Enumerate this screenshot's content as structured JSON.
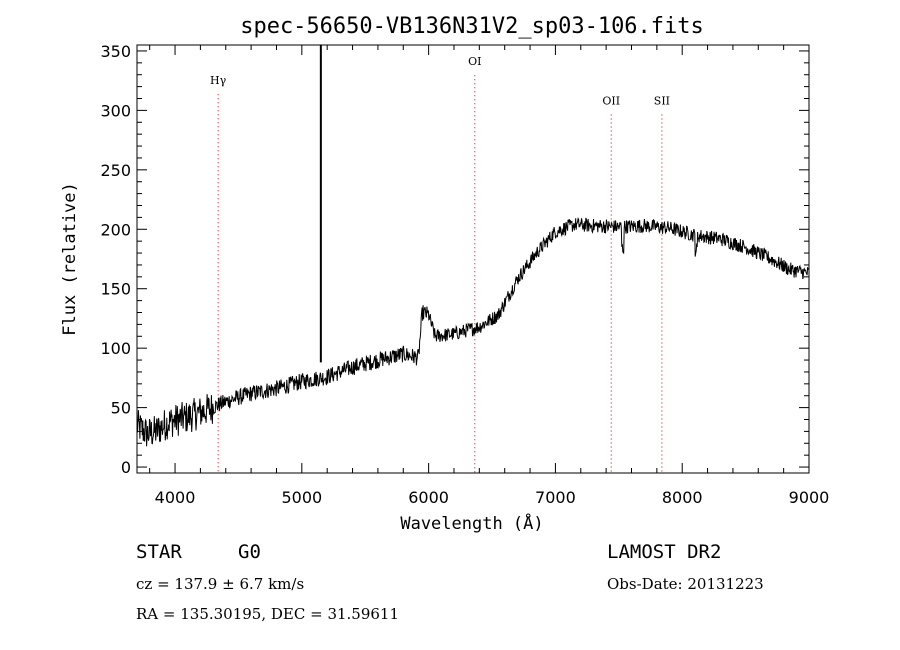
{
  "chart_data": {
    "type": "line",
    "title": "spec-56650-VB136N31V2_sp03-106.fits",
    "xlabel": "Wavelength (Å)",
    "ylabel": "Flux (relative)",
    "xlim": [
      3700,
      9000
    ],
    "ylim": [
      -5,
      355
    ],
    "x_ticks": [
      4000,
      5000,
      6000,
      7000,
      8000,
      9000
    ],
    "y_ticks": [
      0,
      50,
      100,
      150,
      200,
      250,
      300,
      350
    ],
    "grid": false,
    "line_color": "#000000",
    "marker_color": "#cc0000",
    "spectrum_anchor_points": [
      [
        3700,
        35
      ],
      [
        3780,
        28
      ],
      [
        3850,
        30
      ],
      [
        3950,
        38
      ],
      [
        4100,
        42
      ],
      [
        4250,
        48
      ],
      [
        4400,
        55
      ],
      [
        4600,
        62
      ],
      [
        4800,
        66
      ],
      [
        5000,
        72
      ],
      [
        5200,
        76
      ],
      [
        5400,
        84
      ],
      [
        5600,
        90
      ],
      [
        5800,
        95
      ],
      [
        5920,
        92
      ],
      [
        5950,
        130
      ],
      [
        6000,
        128
      ],
      [
        6050,
        110
      ],
      [
        6200,
        112
      ],
      [
        6400,
        118
      ],
      [
        6550,
        128
      ],
      [
        6700,
        158
      ],
      [
        6850,
        180
      ],
      [
        7000,
        198
      ],
      [
        7150,
        204
      ],
      [
        7300,
        203
      ],
      [
        7500,
        202
      ],
      [
        7700,
        203
      ],
      [
        7900,
        201
      ],
      [
        8100,
        195
      ],
      [
        8300,
        192
      ],
      [
        8500,
        185
      ],
      [
        8700,
        175
      ],
      [
        8850,
        166
      ],
      [
        9000,
        163
      ]
    ],
    "spike": {
      "x": 5150,
      "y_top": 355,
      "y_bottom": 88
    },
    "line_markers": [
      {
        "label": "Hγ",
        "x": 4340,
        "label_y": 322
      },
      {
        "label": "OI",
        "x": 6364,
        "label_y": 338
      },
      {
        "label": "OII",
        "x": 7440,
        "label_y": 305
      },
      {
        "label": "SII",
        "x": 7840,
        "label_y": 305
      }
    ]
  },
  "info": {
    "class_label": "STAR",
    "subclass": "G0",
    "survey": "LAMOST DR2",
    "cz": "cz = 137.9 ± 6.7 km/s",
    "obs_date": "Obs-Date: 20131223",
    "coords": "RA = 135.30195, DEC =  31.59611"
  }
}
